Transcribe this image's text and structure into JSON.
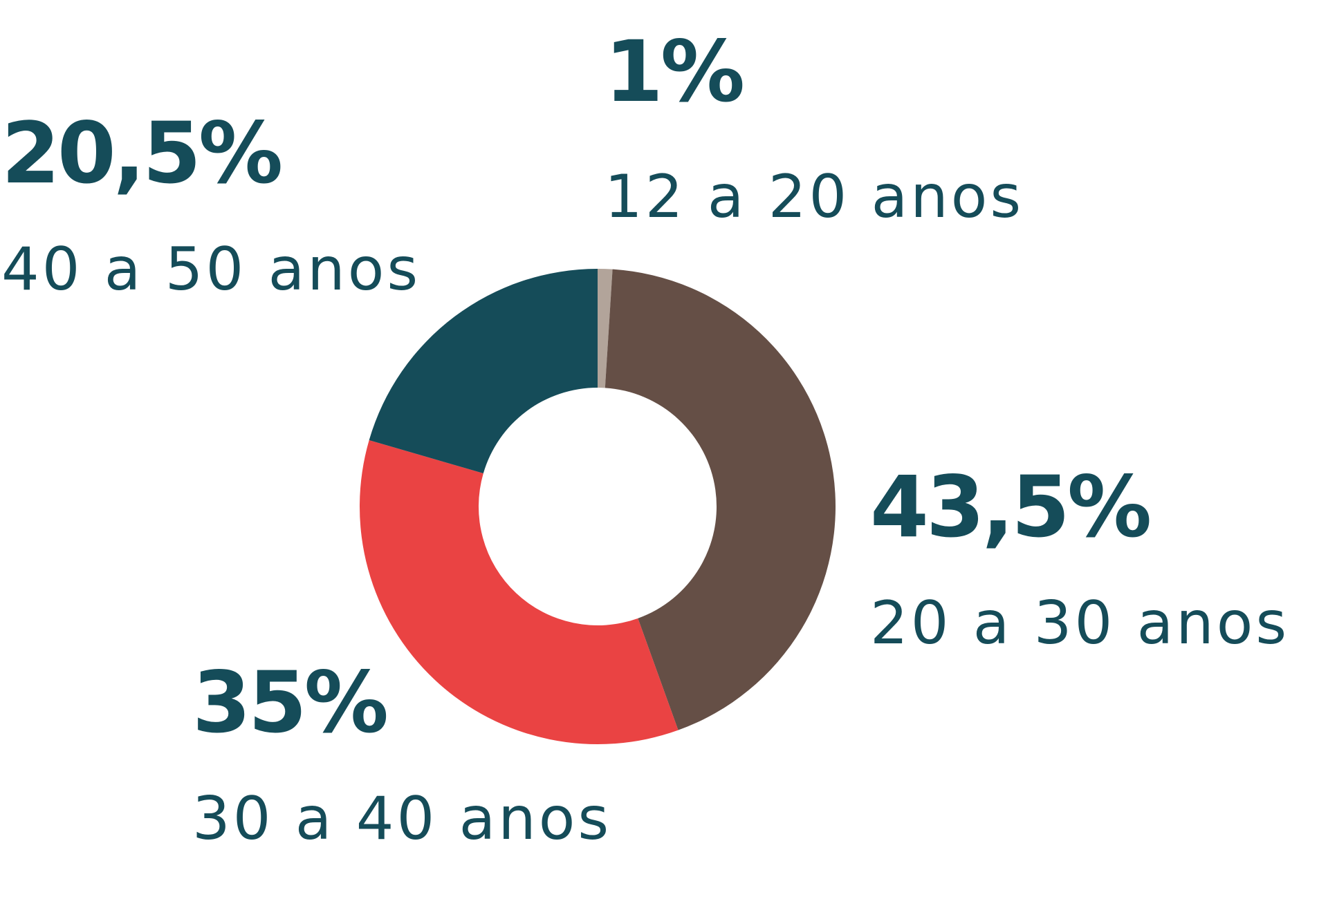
{
  "chart_data": {
    "type": "pie",
    "title": "",
    "donut": true,
    "slices": [
      {
        "label": "12 a 20 anos",
        "value": 1,
        "value_label": "1%",
        "color": "#b2a49a"
      },
      {
        "label": "20 a 30 anos",
        "value": 43.5,
        "value_label": "43,5%",
        "color": "#654f46"
      },
      {
        "label": "30 a 40 anos",
        "value": 35,
        "value_label": "35%",
        "color": "#ea4343"
      },
      {
        "label": "40 a 50 anos",
        "value": 20.5,
        "value_label": "20,5%",
        "color": "#154c59"
      }
    ],
    "text_color": "#154c59",
    "background": "#ffffff"
  }
}
